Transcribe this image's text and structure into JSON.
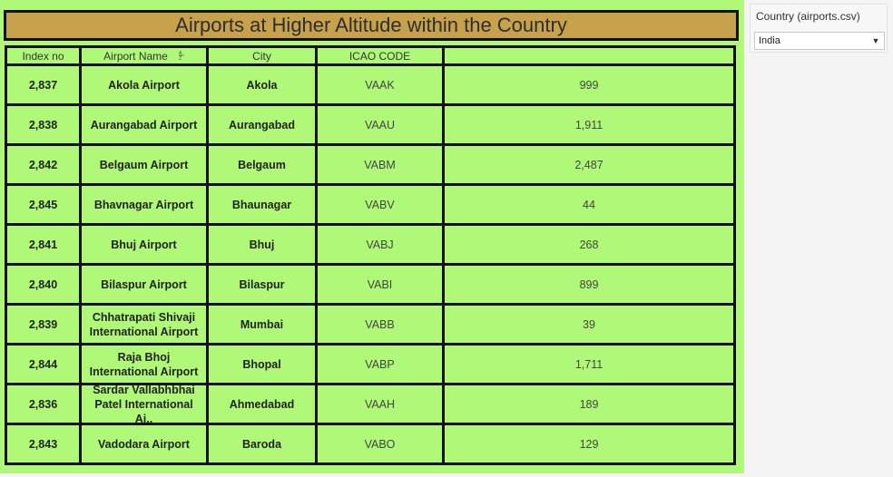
{
  "title": "Airports at Higher Altitude within the Country",
  "columns": [
    "Index no",
    "Airport Name",
    "City",
    "ICAO CODE",
    ""
  ],
  "rows": [
    {
      "index": "2,837",
      "name_lines": [
        "Akola Airport"
      ],
      "city": "Akola",
      "icao": "VAAK",
      "value": "999"
    },
    {
      "index": "2,838",
      "name_lines": [
        "Aurangabad Airport"
      ],
      "city": "Aurangabad",
      "icao": "VAAU",
      "value": "1,911"
    },
    {
      "index": "2,842",
      "name_lines": [
        "Belgaum Airport"
      ],
      "city": "Belgaum",
      "icao": "VABM",
      "value": "2,487"
    },
    {
      "index": "2,845",
      "name_lines": [
        "Bhavnagar Airport"
      ],
      "city": "Bhaunagar",
      "icao": "VABV",
      "value": "44"
    },
    {
      "index": "2,841",
      "name_lines": [
        "Bhuj Airport"
      ],
      "city": "Bhuj",
      "icao": "VABJ",
      "value": "268"
    },
    {
      "index": "2,840",
      "name_lines": [
        "Bilaspur Airport"
      ],
      "city": "Bilaspur",
      "icao": "VABI",
      "value": "899"
    },
    {
      "index": "2,839",
      "name_lines": [
        "Chhatrapati Shivaji",
        "International Airport"
      ],
      "city": "Mumbai",
      "icao": "VABB",
      "value": "39"
    },
    {
      "index": "2,844",
      "name_lines": [
        "Raja Bhoj",
        "International Airport"
      ],
      "city": "Bhopal",
      "icao": "VABP",
      "value": "1,711"
    },
    {
      "index": "2,836",
      "name_lines": [
        "Sardar Vallabhbhai",
        "Patel International Ai.."
      ],
      "city": "Ahmedabad",
      "icao": "VAAH",
      "value": "189"
    },
    {
      "index": "2,843",
      "name_lines": [
        "Vadodara Airport"
      ],
      "city": "Baroda",
      "icao": "VABO",
      "value": "129"
    }
  ],
  "filter": {
    "label": "Country (airports.csv)",
    "value": "India"
  },
  "icons": {
    "sort": "sort-icon",
    "dropdown": "chevron-down-icon"
  },
  "colors": {
    "background": "#b0f878",
    "title_bar": "#c7a14c",
    "border": "#111111"
  }
}
